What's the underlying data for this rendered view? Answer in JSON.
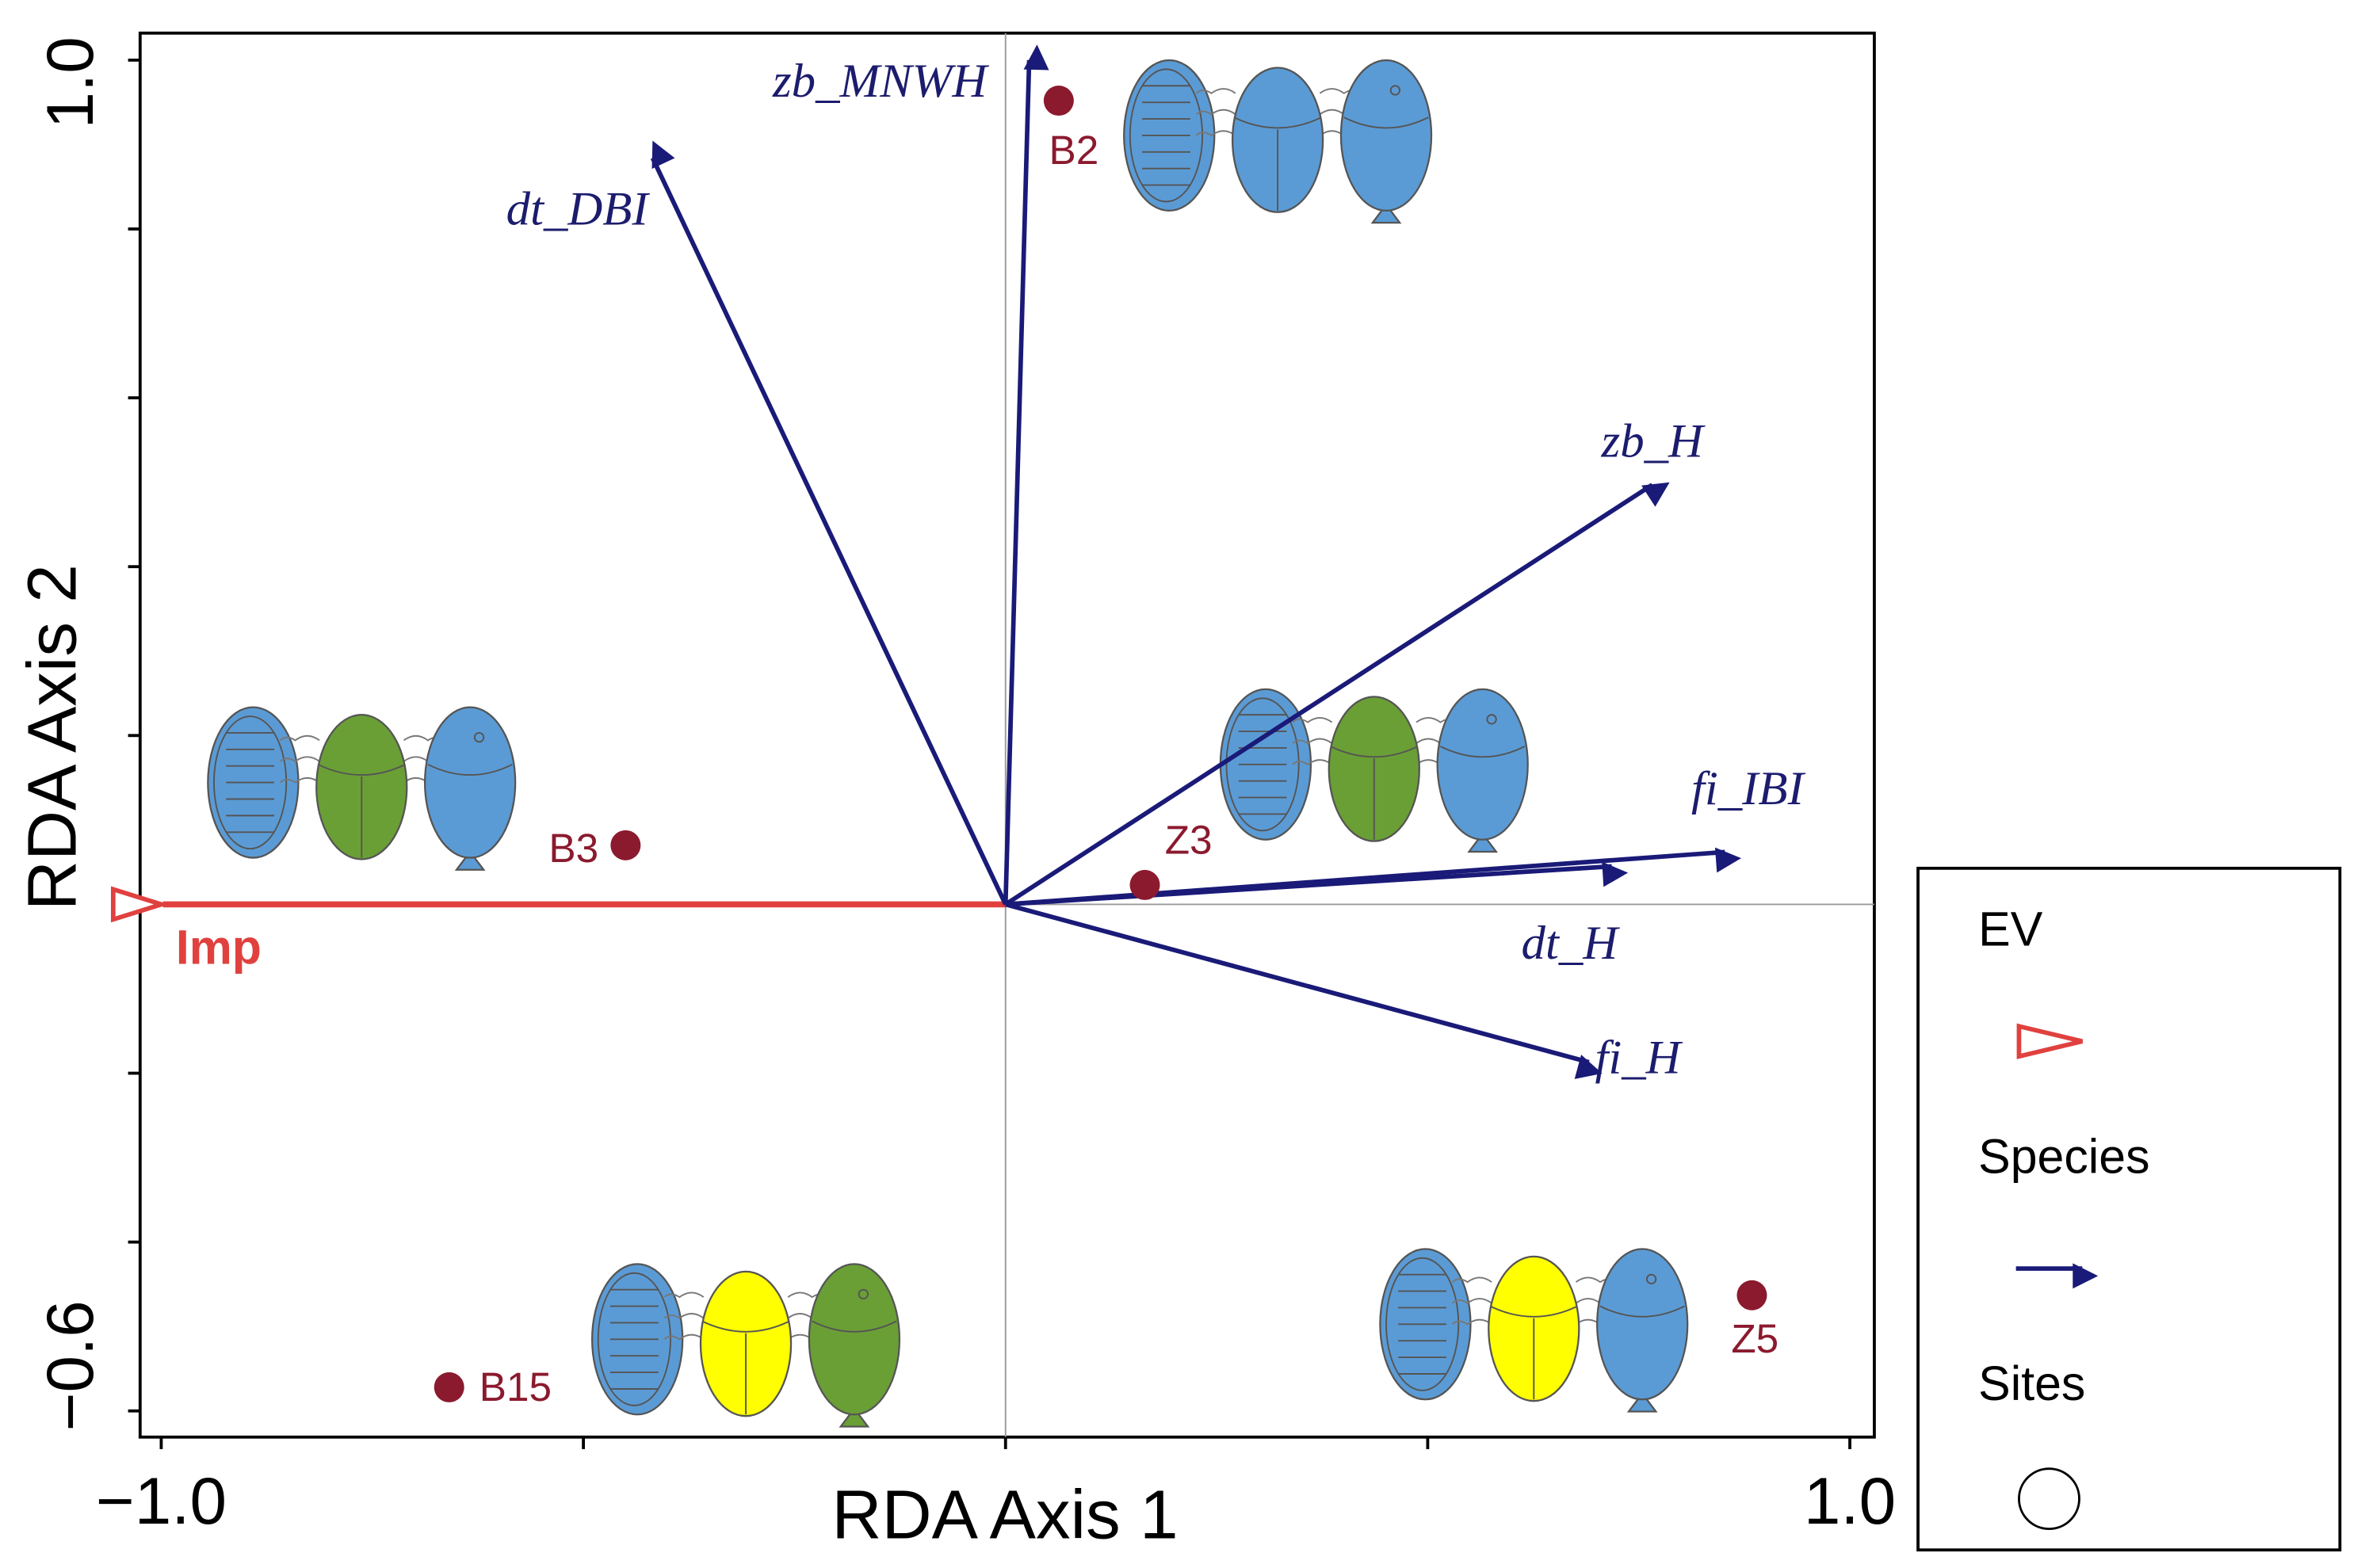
{
  "chart_data": {
    "type": "biplot",
    "xlabel": "RDA Axis 1",
    "ylabel": "RDA Axis 2",
    "xlim": [
      -1.025,
      1.029
    ],
    "ylim": [
      -0.631,
      1.032
    ],
    "xticks": [
      {
        "value": -1.0,
        "label": "−1.0"
      },
      {
        "value": 1.0,
        "label": "1.0"
      }
    ],
    "xminor_ticks": [
      -0.5,
      0,
      0.5
    ],
    "yticks": [
      {
        "value": 1.0,
        "label": "1.0"
      },
      {
        "value": -0.6,
        "label": "−0.6"
      }
    ],
    "yminor_ticks": [
      -0.4,
      -0.2,
      0,
      0.2,
      0.4,
      0.6,
      0.8
    ],
    "series": [
      {
        "name": "EV",
        "color": "#e0413f",
        "marker": "open-arrow",
        "labels": [
          "Imp"
        ],
        "x": [
          -0.998
        ],
        "y": [
          0
        ]
      },
      {
        "name": "Species",
        "color": "#1a1a78",
        "marker": "arrow",
        "labels": [
          "zb_MNWH",
          "dt_DBI",
          "zb_H",
          "fi_IBI",
          "dt_H",
          "fi_H"
        ],
        "x": [
          0.028,
          -0.418,
          0.766,
          0.852,
          0.718,
          0.691
        ],
        "y": [
          1.0,
          0.884,
          0.497,
          0.062,
          0.045,
          -0.187
        ]
      },
      {
        "name": "Sites",
        "color": "#8b1a2e",
        "marker": "circle",
        "labels": [
          "B2",
          "B3",
          "Z3",
          "Z5",
          "B15"
        ],
        "x": [
          0.063,
          -0.45,
          0.165,
          0.884,
          -0.659
        ],
        "y": [
          0.952,
          0.07,
          0.023,
          -0.463,
          -0.572
        ]
      }
    ]
  }
}
